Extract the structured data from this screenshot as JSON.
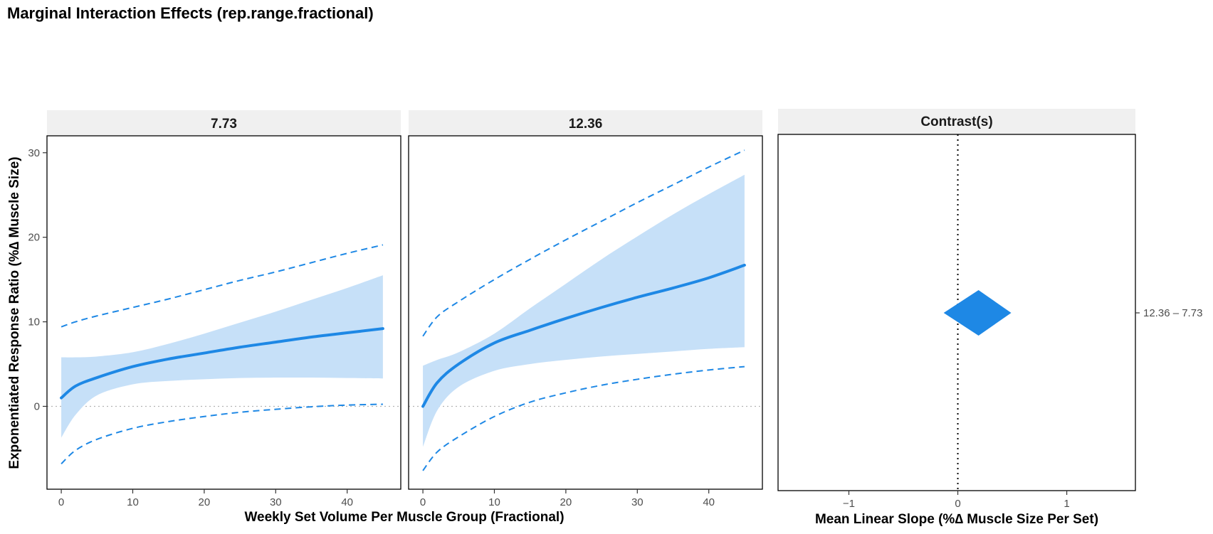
{
  "title": "Marginal Interaction Effects (rep.range.fractional)",
  "colors": {
    "accent": "#1e88e5",
    "ribbon": "#c6e0f8",
    "strip": "#f0f0f0",
    "reference": "#b3b3b3"
  },
  "chart_data": [
    {
      "type": "line",
      "panel": "7.73",
      "xlabel": "Weekly Set Volume Per Muscle Group (Fractional)",
      "ylabel": "Exponentiated Response Ratio (%∆ Muscle Size)",
      "xlim": [
        -2,
        47.5
      ],
      "ylim": [
        -9.8,
        32
      ],
      "x_ticks": [
        0,
        10,
        20,
        30,
        40
      ],
      "y_ticks": [
        0,
        10,
        20,
        30
      ],
      "reference_line_y": 0,
      "x": [
        0,
        2,
        5,
        10,
        15,
        20,
        25,
        30,
        35,
        40,
        45
      ],
      "estimate": [
        1.0,
        2.4,
        3.4,
        4.7,
        5.6,
        6.3,
        7.0,
        7.6,
        8.2,
        8.7,
        9.2
      ],
      "ci_lower": [
        -3.7,
        -1.0,
        1.3,
        2.6,
        3.0,
        3.2,
        3.35,
        3.4,
        3.4,
        3.35,
        3.3
      ],
      "ci_upper": [
        5.8,
        5.8,
        5.9,
        6.4,
        7.4,
        8.6,
        9.9,
        11.2,
        12.6,
        14.0,
        15.5
      ],
      "pred_lower": [
        -6.8,
        -5.2,
        -3.9,
        -2.6,
        -1.8,
        -1.2,
        -0.7,
        -0.35,
        -0.05,
        0.15,
        0.25
      ],
      "pred_upper": [
        9.4,
        10.0,
        10.7,
        11.7,
        12.7,
        13.8,
        14.9,
        15.9,
        17.0,
        18.1,
        19.1
      ]
    },
    {
      "type": "line",
      "panel": "12.36",
      "xlim": [
        -2,
        47.5
      ],
      "ylim": [
        -9.8,
        32
      ],
      "x_ticks": [
        0,
        10,
        20,
        30,
        40
      ],
      "reference_line_y": 0,
      "x": [
        0,
        2,
        5,
        10,
        15,
        20,
        25,
        30,
        35,
        40,
        45
      ],
      "estimate": [
        0.0,
        2.8,
        5.0,
        7.5,
        9.0,
        10.4,
        11.7,
        12.9,
        14.0,
        15.2,
        16.7
      ],
      "ci_lower": [
        -4.8,
        -0.5,
        2.3,
        4.2,
        5.0,
        5.5,
        5.9,
        6.2,
        6.5,
        6.8,
        7.0
      ],
      "ci_upper": [
        4.8,
        5.5,
        6.4,
        8.6,
        11.6,
        14.5,
        17.4,
        20.1,
        22.7,
        25.1,
        27.4
      ],
      "pred_lower": [
        -7.6,
        -5.4,
        -3.6,
        -1.2,
        0.5,
        1.6,
        2.5,
        3.2,
        3.8,
        4.3,
        4.7
      ],
      "pred_upper": [
        8.3,
        10.6,
        12.4,
        15.0,
        17.4,
        19.7,
        21.9,
        24.1,
        26.2,
        28.3,
        30.3
      ]
    },
    {
      "type": "scatter",
      "panel": "Contrast(s)",
      "xlabel": "Mean Linear Slope (%∆ Muscle Size Per Set)",
      "xlim": [
        -1.65,
        1.63
      ],
      "x_ticks": [
        -1,
        0,
        1
      ],
      "x_tick_labels": [
        "−1",
        "0",
        "1"
      ],
      "reference_line_x": 0,
      "categories": [
        "12.36 – 7.73"
      ],
      "estimate": 0.19,
      "interval": [
        -0.13,
        0.49
      ]
    }
  ]
}
